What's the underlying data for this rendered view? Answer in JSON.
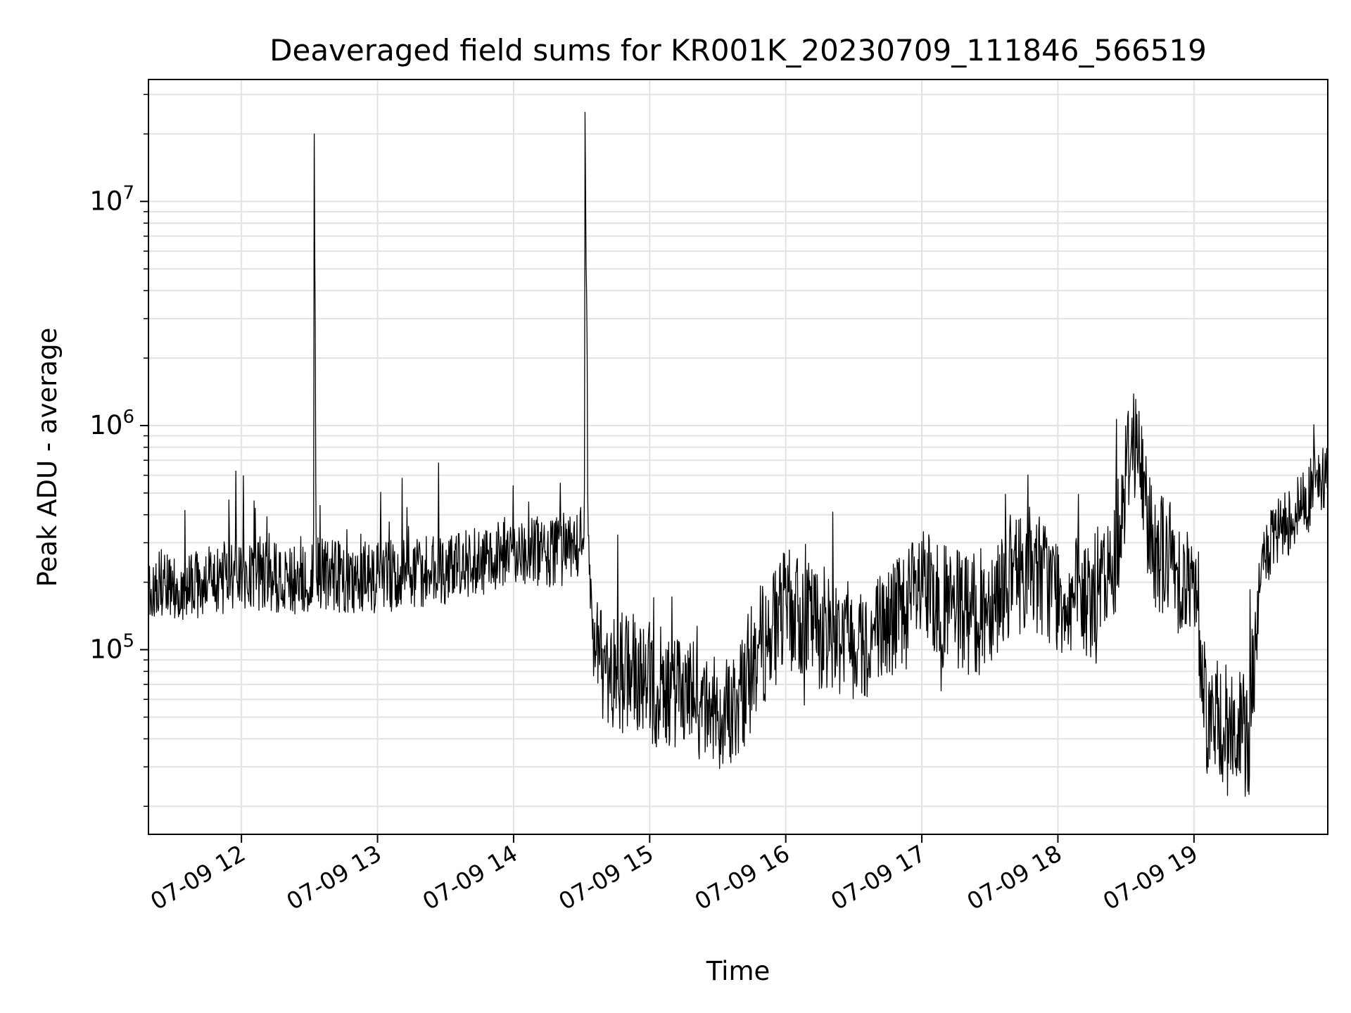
{
  "chart_data": {
    "type": "line",
    "title": "Deaveraged field sums for KR001K_20230709_111846_566519",
    "xlabel": "Time",
    "ylabel": "Peak ADU - average",
    "yscale": "log",
    "xlim": [
      "07-09 11:19",
      "07-09 19:59"
    ],
    "ylim": [
      15000,
      35000000
    ],
    "grid": true,
    "line_color": "#000000",
    "x_tick_labels": [
      "07-09 12",
      "07-09 13",
      "07-09 14",
      "07-09 15",
      "07-09 16",
      "07-09 17",
      "07-09 18",
      "07-09 19"
    ],
    "x_tick_hours": [
      12,
      13,
      14,
      15,
      16,
      17,
      18,
      19
    ],
    "y_ticks": [
      {
        "value": 100000,
        "base": "10",
        "exp": "5"
      },
      {
        "value": 1000000,
        "base": "10",
        "exp": "6"
      },
      {
        "value": 10000000,
        "base": "10",
        "exp": "7"
      }
    ],
    "series": [
      {
        "x_hours": [
          11.32,
          11.5,
          11.75,
          12.0,
          12.25,
          12.5,
          12.53,
          12.535,
          12.55,
          12.75,
          13.0,
          13.25,
          13.5,
          13.75,
          14.0,
          14.25,
          14.5,
          14.52,
          14.525,
          14.55,
          14.6,
          14.8,
          15.0,
          15.2,
          15.4,
          15.6,
          15.8,
          16.0,
          16.2,
          16.4,
          16.6,
          16.8,
          17.0,
          17.2,
          17.4,
          17.6,
          17.8,
          18.0,
          18.2,
          18.4,
          18.55,
          18.7,
          18.9,
          19.0,
          19.1,
          19.25,
          19.4,
          19.5,
          19.65,
          19.8,
          19.97
        ],
        "y": [
          200000,
          190000,
          200000,
          220000,
          210000,
          200000,
          210000,
          20000000,
          220000,
          210000,
          210000,
          220000,
          230000,
          250000,
          280000,
          270000,
          300000,
          310000,
          25000000,
          250000,
          90000,
          80000,
          70000,
          65000,
          55000,
          50000,
          100000,
          150000,
          130000,
          120000,
          110000,
          140000,
          180000,
          150000,
          140000,
          200000,
          240000,
          180000,
          160000,
          220000,
          1000000,
          300000,
          220000,
          180000,
          50000,
          45000,
          40000,
          250000,
          350000,
          450000,
          600000
        ]
      }
    ]
  }
}
